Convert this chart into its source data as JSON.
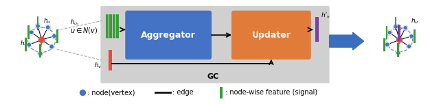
{
  "bg_color": "#ffffff",
  "gc_box_color": "#d0d0d0",
  "aggregator_color": "#4472c4",
  "updater_color": "#e07b39",
  "arrow_color": "#3a6fbf",
  "node_color": "#4472c4",
  "center_node_color": "#e74c3c",
  "edge_color": "#111111",
  "feat_green": "#3a9c3a",
  "feat_purple": "#7b3fa0",
  "feat_red": "#e74c3c",
  "legend_text": [
    ": node(vertex)",
    ": edge",
    ": node-wise feature (signal)"
  ]
}
